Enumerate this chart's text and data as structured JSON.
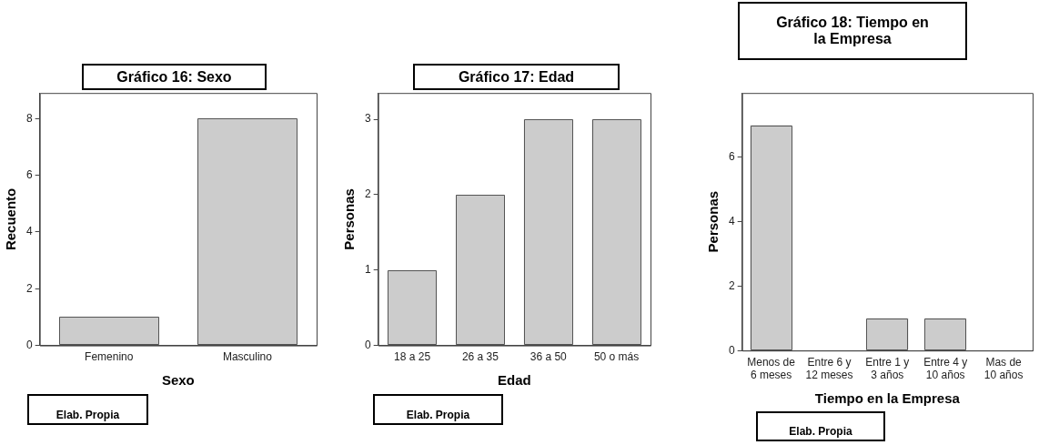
{
  "chart_data": [
    {
      "type": "bar",
      "title": "Gráfico 16: Sexo",
      "xlabel": "Sexo",
      "ylabel": "Recuento",
      "categories": [
        "Femenino",
        "Masculino"
      ],
      "values": [
        1,
        8
      ],
      "color": "#cccccc",
      "ylim": [
        0,
        8.9
      ],
      "yticks": [
        0,
        2,
        4,
        6,
        8
      ],
      "grid": false,
      "annotations": [
        "Elab. Propia"
      ]
    },
    {
      "type": "bar",
      "title": "Gráfico 17: Edad",
      "xlabel": "Edad",
      "ylabel": "Personas",
      "categories": [
        "18 a 25",
        "26 a 35",
        "36 a 50",
        "50 o más"
      ],
      "values": [
        1,
        2,
        3,
        3
      ],
      "color": "#cccccc",
      "ylim": [
        0,
        3.35
      ],
      "yticks": [
        0,
        1,
        2,
        3
      ],
      "grid": false,
      "annotations": [
        "Elab. Propia"
      ]
    },
    {
      "type": "bar",
      "title": "Gráfico 18: Tiempo en la Empresa",
      "xlabel": "Tiempo en la Empresa",
      "ylabel": "Personas",
      "categories": [
        "Menos de 6 meses",
        "Entre 6 y 12 meses",
        "Entre 1 y 3 años",
        "Entre 4 y 10 años",
        "Mas de 10 años"
      ],
      "values": [
        7,
        0,
        1,
        1,
        0
      ],
      "color": "#cccccc",
      "ylim": [
        0,
        8
      ],
      "yticks": [
        0,
        2,
        4,
        6
      ],
      "grid": false,
      "annotations": [
        "Elab. Propia"
      ]
    }
  ]
}
